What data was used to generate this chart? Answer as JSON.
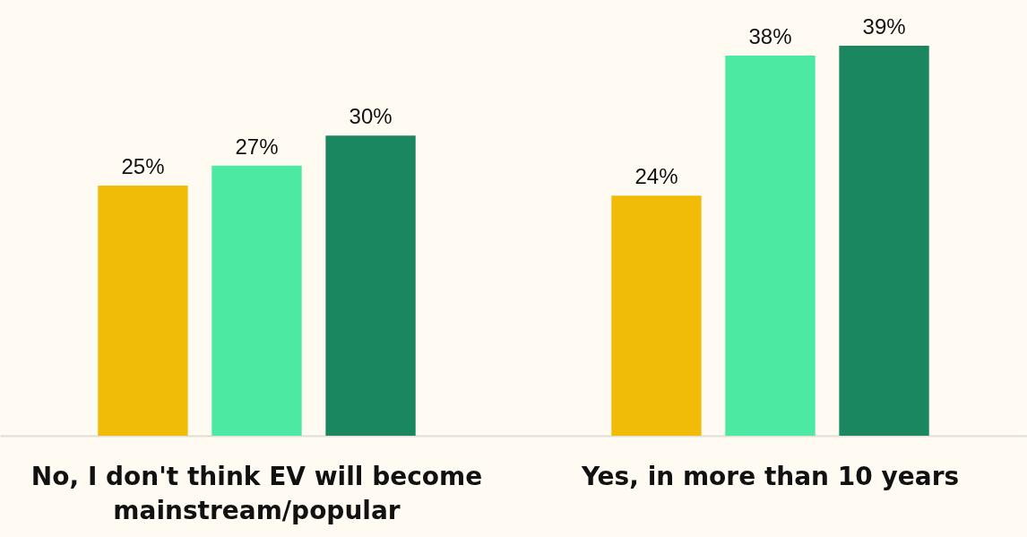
{
  "chart_data": {
    "type": "bar",
    "categories": [
      "No, I don't think EV will become mainstream/popular",
      "Yes, in more than 10 years"
    ],
    "series": [
      {
        "color": "#f0bc08",
        "values": [
          25,
          24
        ],
        "value_labels": [
          "25%",
          "24%"
        ]
      },
      {
        "color": "#4ce9a3",
        "values": [
          27,
          38
        ],
        "value_labels": [
          "27%",
          "38%"
        ]
      },
      {
        "color": "#1a8760",
        "values": [
          30,
          39
        ],
        "value_labels": [
          "30%",
          "39%"
        ]
      }
    ],
    "tick_labels": "x",
    "grid": false
  }
}
